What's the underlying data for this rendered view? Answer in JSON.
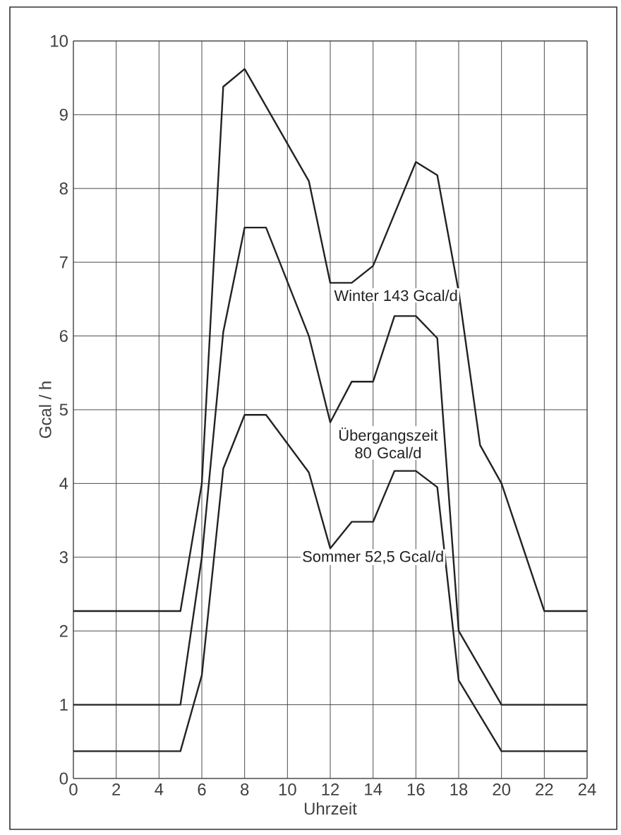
{
  "chart_data": {
    "type": "line",
    "xlabel": "Uhrzeit",
    "ylabel": "Gcal / h",
    "xlim": [
      0,
      24
    ],
    "ylim": [
      0,
      10
    ],
    "xticks": [
      0,
      2,
      4,
      6,
      8,
      10,
      12,
      14,
      16,
      18,
      20,
      22,
      24
    ],
    "yticks": [
      0,
      1,
      2,
      3,
      4,
      5,
      6,
      7,
      8,
      9,
      10
    ],
    "grid": true,
    "legend": false,
    "marker": "none",
    "line_style": "solid",
    "series": [
      {
        "name": "Winter 143 Gcal/d",
        "color": "#222222",
        "x": [
          0,
          5,
          6,
          7,
          8,
          11,
          12,
          13,
          14,
          16,
          17,
          18,
          19,
          20,
          22,
          24
        ],
        "values": [
          2.27,
          2.27,
          4.0,
          9.38,
          9.62,
          8.1,
          6.72,
          6.72,
          6.95,
          8.36,
          8.18,
          6.6,
          4.52,
          4.0,
          2.27,
          2.27
        ]
      },
      {
        "name": "Übergangszeit 80 Gcal/d",
        "color": "#222222",
        "x": [
          0,
          5,
          6,
          7,
          8,
          9,
          11,
          12,
          13,
          14,
          15,
          16,
          17,
          18,
          20,
          24
        ],
        "values": [
          1.0,
          1.0,
          3.0,
          6.05,
          7.47,
          7.47,
          6.0,
          4.83,
          5.38,
          5.38,
          6.27,
          6.27,
          5.97,
          2.0,
          1.0,
          1.0
        ]
      },
      {
        "name": "Sommer 52,5 Gcal/d",
        "color": "#222222",
        "x": [
          0,
          5,
          6,
          7,
          8,
          9,
          11,
          12,
          13,
          14,
          15,
          16,
          17,
          18,
          20,
          24
        ],
        "values": [
          0.37,
          0.37,
          1.4,
          4.2,
          4.93,
          4.93,
          4.15,
          3.12,
          3.48,
          3.48,
          4.17,
          4.17,
          3.95,
          1.33,
          0.37,
          0.37
        ]
      }
    ]
  }
}
